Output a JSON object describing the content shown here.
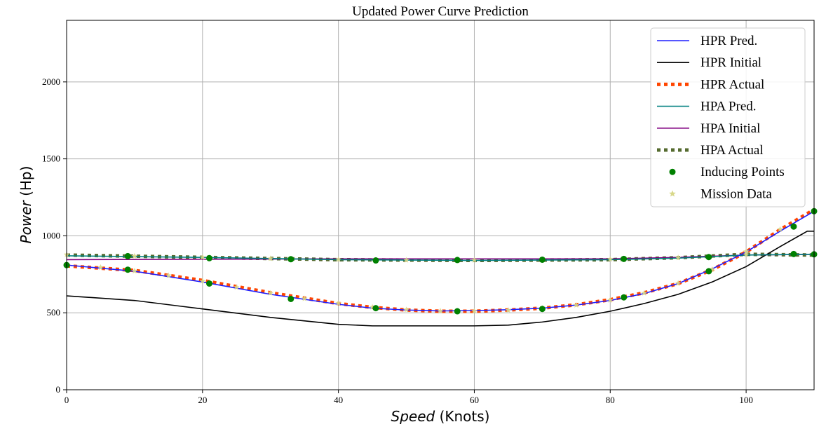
{
  "chart_data": {
    "type": "line",
    "title": "Updated Power Curve Prediction",
    "xlabel_var": "Speed",
    "xlabel_unit": "(Knots)",
    "ylabel_var": "Power",
    "ylabel_unit": "(Hp)",
    "xlim": [
      0,
      110
    ],
    "ylim": [
      0,
      2400
    ],
    "xticks": [
      0,
      20,
      40,
      60,
      80,
      100
    ],
    "yticks": [
      0,
      500,
      1000,
      1500,
      2000
    ],
    "grid": true,
    "legend_position": "top-right",
    "series": [
      {
        "name": "HPR Pred.",
        "style": "solid",
        "color": "#1f1fff",
        "x": [
          0,
          10,
          20,
          30,
          40,
          45,
          50,
          55,
          60,
          65,
          70,
          75,
          80,
          85,
          90,
          95,
          100,
          105,
          110
        ],
        "y": [
          810,
          770,
          700,
          620,
          555,
          530,
          518,
          512,
          514,
          520,
          530,
          550,
          580,
          625,
          690,
          785,
          895,
          1030,
          1160
        ]
      },
      {
        "name": "HPR Initial",
        "style": "solid",
        "color": "#000000",
        "x": [
          0,
          10,
          20,
          30,
          40,
          45,
          50,
          55,
          60,
          65,
          70,
          75,
          80,
          85,
          90,
          95,
          100,
          105,
          109,
          110
        ],
        "y": [
          610,
          580,
          525,
          470,
          425,
          415,
          415,
          415,
          415,
          420,
          440,
          470,
          510,
          560,
          620,
          700,
          800,
          930,
          1030,
          1030
        ]
      },
      {
        "name": "HPR Actual",
        "style": "dotted",
        "color": "#ff4500",
        "x": [
          0,
          10,
          20,
          30,
          40,
          45,
          50,
          55,
          60,
          65,
          70,
          75,
          80,
          85,
          90,
          95,
          100,
          105,
          110
        ],
        "y": [
          805,
          775,
          710,
          630,
          560,
          535,
          518,
          510,
          510,
          518,
          530,
          552,
          585,
          630,
          690,
          780,
          895,
          1040,
          1170
        ]
      },
      {
        "name": "HPA Pred.",
        "style": "solid",
        "color": "#008080",
        "x": [
          0,
          20,
          40,
          60,
          80,
          90,
          100,
          110
        ],
        "y": [
          870,
          860,
          845,
          840,
          845,
          855,
          875,
          880
        ]
      },
      {
        "name": "HPA Initial",
        "style": "solid",
        "color": "#800080",
        "x": [
          0,
          20,
          40,
          60,
          80,
          90,
          100,
          110
        ],
        "y": [
          845,
          848,
          850,
          850,
          850,
          860,
          875,
          880
        ]
      },
      {
        "name": "HPA Actual",
        "style": "dotted",
        "color": "#556b2f",
        "x": [
          0,
          20,
          40,
          60,
          80,
          90,
          100,
          110
        ],
        "y": [
          875,
          860,
          845,
          840,
          845,
          858,
          880,
          875
        ]
      },
      {
        "name": "Inducing Points",
        "style": "marker-circle",
        "color": "#008000",
        "x": [
          0,
          9,
          21,
          33,
          45.5,
          57.5,
          70,
          82,
          94.5,
          107,
          110,
          9,
          21,
          33,
          45.5,
          57.5,
          70,
          82,
          94.5,
          107,
          110
        ],
        "y": [
          810,
          780,
          690,
          590,
          530,
          510,
          525,
          600,
          770,
          1060,
          1160,
          868,
          855,
          848,
          840,
          843,
          845,
          850,
          862,
          882,
          880
        ]
      },
      {
        "name": "Mission Data",
        "style": "marker-star",
        "color": "#d8d88a",
        "x": [
          0,
          5,
          10,
          15,
          20,
          25,
          30,
          35,
          40,
          45,
          50,
          55,
          60,
          65,
          70,
          75,
          80,
          85,
          90,
          95,
          100,
          105,
          110,
          0,
          10,
          20,
          30,
          40,
          50,
          60,
          70,
          80,
          90,
          100,
          110
        ],
        "y": [
          815,
          795,
          772,
          742,
          706,
          666,
          628,
          592,
          562,
          537,
          520,
          512,
          511,
          517,
          530,
          550,
          582,
          628,
          692,
          782,
          898,
          1042,
          1165,
          878,
          868,
          860,
          852,
          846,
          842,
          842,
          844,
          848,
          858,
          878,
          878
        ]
      }
    ]
  }
}
